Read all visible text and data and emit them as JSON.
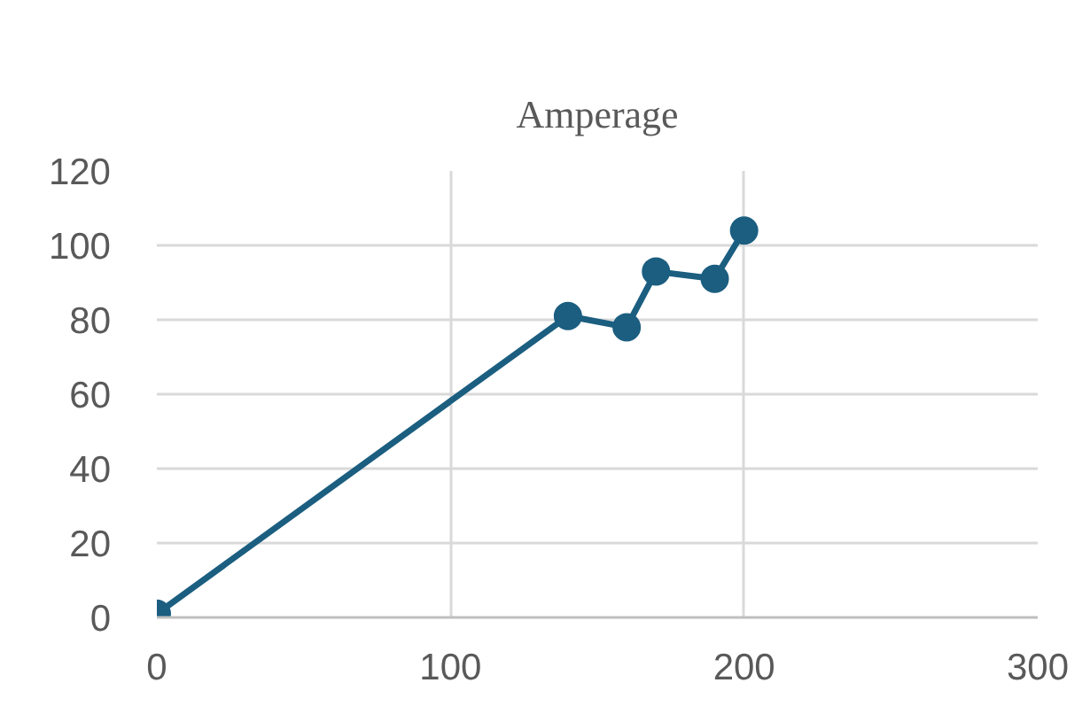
{
  "chart_data": {
    "type": "line",
    "title": "Amperage",
    "x": [
      0,
      140,
      160,
      170,
      190,
      200
    ],
    "values": [
      1,
      81,
      78,
      93,
      91,
      104
    ],
    "color": "#1b5e80",
    "xlim": [
      0,
      300
    ],
    "xticks": [
      0,
      100,
      200,
      300
    ],
    "ylim": [
      0,
      120
    ],
    "yticks": [
      0,
      20,
      40,
      60,
      80,
      100,
      120
    ],
    "grid": true,
    "marker": "circle",
    "line_style": "solid"
  }
}
